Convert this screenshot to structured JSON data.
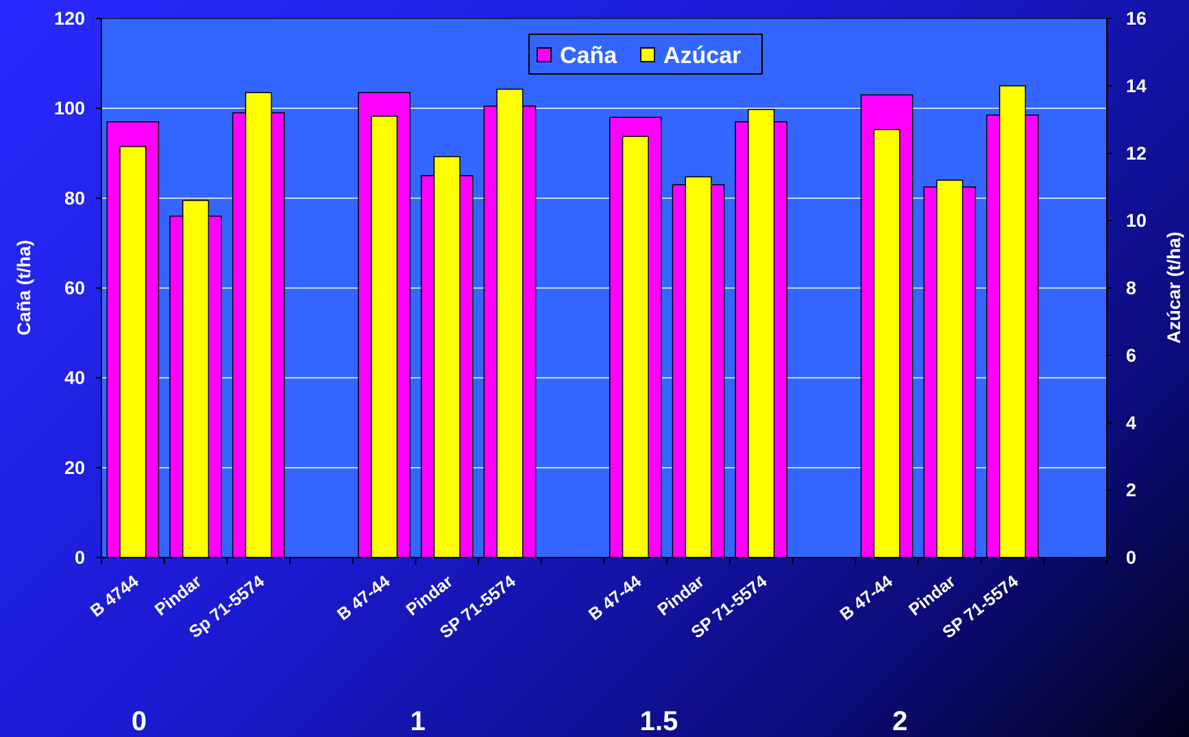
{
  "chart_data": {
    "type": "bar",
    "left_axis": {
      "label": "Caña (t/ha)",
      "ylim": [
        0,
        120
      ],
      "ticks": [
        "0",
        "20",
        "40",
        "60",
        "80",
        "100",
        "120"
      ]
    },
    "right_axis": {
      "label": "Azúcar (t/ha)",
      "ylim": [
        0,
        16
      ],
      "ticks": [
        "0",
        "2",
        "4",
        "6",
        "8",
        "10",
        "12",
        "14",
        "16"
      ]
    },
    "groups": [
      {
        "label": "0",
        "categories": [
          "B 4744",
          "Pindar",
          "Sp 71-5574"
        ]
      },
      {
        "label": "1",
        "categories": [
          "B 47-44",
          "Pindar",
          "SP 71-5574"
        ]
      },
      {
        "label": "1.5",
        "categories": [
          "B 47-44",
          "Pindar",
          "SP 71-5574"
        ]
      },
      {
        "label": "2",
        "categories": [
          "B 47-44",
          "Pindar",
          "SP 71-5574"
        ]
      }
    ],
    "series": [
      {
        "name": "Caña",
        "axis": "left",
        "color": "#ff00ff",
        "values": [
          97,
          76,
          99,
          103.5,
          85,
          100.5,
          98,
          83,
          97,
          103,
          82.5,
          98.5
        ]
      },
      {
        "name": "Azúcar",
        "axis": "right",
        "color": "#ffff00",
        "values": [
          12.2,
          10.6,
          13.8,
          13.1,
          11.9,
          13.9,
          12.5,
          11.3,
          13.3,
          12.7,
          11.2,
          14.0
        ]
      }
    ],
    "grid": true,
    "legend": "top-center",
    "plot_background": "#3366ff"
  }
}
